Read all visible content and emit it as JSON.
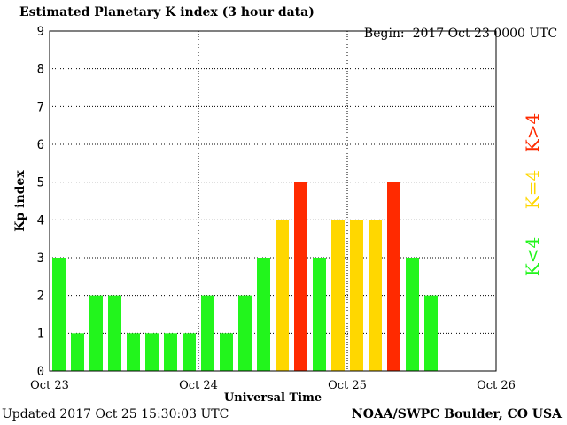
{
  "header": {
    "title": "Estimated Planetary K index (3 hour data)",
    "begin_label": "Begin:",
    "begin_value": "2017 Oct 23 0000 UTC"
  },
  "footer": {
    "updated": "Updated 2017 Oct 25 15:30:03 UTC",
    "credit": "NOAA/SWPC Boulder, CO USA"
  },
  "legend": {
    "low": "K<4",
    "mid": "K=4",
    "high": "K>4"
  },
  "colors": {
    "low": "#22f51c",
    "mid": "#ffd700",
    "high": "#ff2a00",
    "grid": "#000000"
  },
  "chart_data": {
    "type": "bar",
    "title": "Estimated Planetary K index (3 hour data)",
    "xlabel": "Universal Time",
    "ylabel": "Kp index",
    "ylim": [
      0,
      9
    ],
    "y_ticks": [
      "0",
      "1",
      "2",
      "3",
      "4",
      "5",
      "6",
      "7",
      "8",
      "9"
    ],
    "x_tick_labels": [
      "Oct 23",
      "Oct 24",
      "Oct 25",
      "Oct 26"
    ],
    "slots_total": 24,
    "values": [
      3,
      1,
      2,
      2,
      1,
      1,
      1,
      1,
      2,
      1,
      2,
      3,
      4,
      5,
      3,
      4,
      4,
      4,
      5,
      3,
      2
    ],
    "grid": true
  }
}
